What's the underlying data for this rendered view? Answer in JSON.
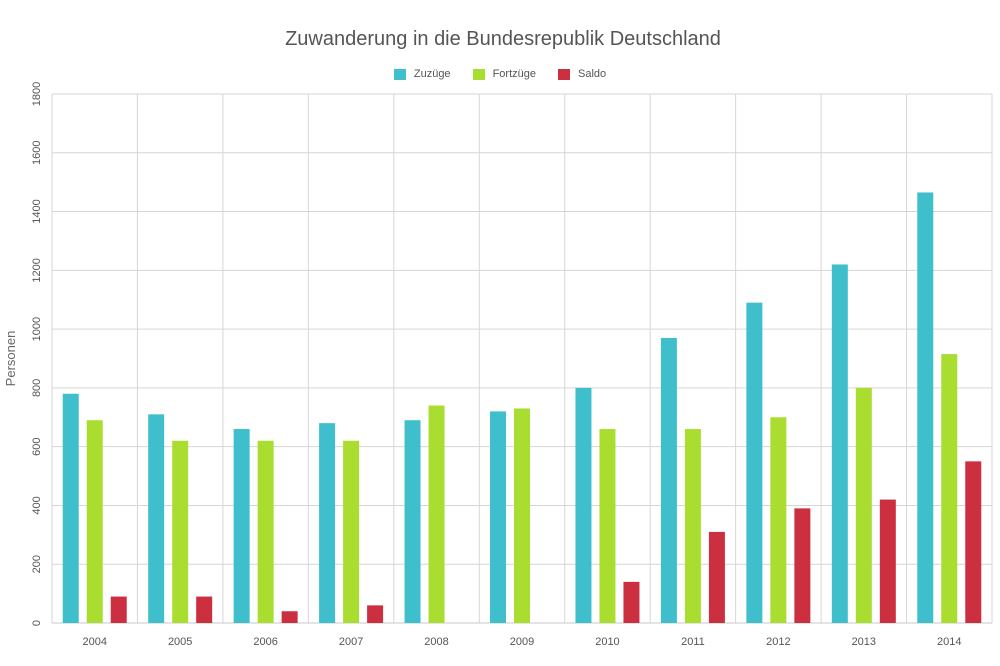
{
  "chart_data": {
    "type": "bar",
    "title": "Zuwanderung in die Bundesrepublik Deutschland",
    "xlabel": "",
    "ylabel": "Personen",
    "categories": [
      "2004",
      "2005",
      "2006",
      "2007",
      "2008",
      "2009",
      "2010",
      "2011",
      "2012",
      "2013",
      "2014"
    ],
    "series": [
      {
        "name": "Zuzüge",
        "color": "#3fbfcb",
        "values": [
          780,
          710,
          660,
          680,
          690,
          720,
          800,
          970,
          1090,
          1220,
          1465
        ]
      },
      {
        "name": "Fortzüge",
        "color": "#a9de31",
        "values": [
          690,
          620,
          620,
          620,
          740,
          730,
          660,
          660,
          700,
          800,
          915
        ]
      },
      {
        "name": "Saldo",
        "color": "#cc3040",
        "values": [
          90,
          90,
          40,
          60,
          0,
          0,
          140,
          310,
          390,
          420,
          550
        ]
      }
    ],
    "ylim": [
      0,
      1800
    ],
    "yticks": [
      "0",
      "200",
      "400",
      "600",
      "800",
      "1000",
      "1200",
      "1400",
      "1600",
      "1800"
    ],
    "grid": true,
    "legend_position": "top-center"
  }
}
